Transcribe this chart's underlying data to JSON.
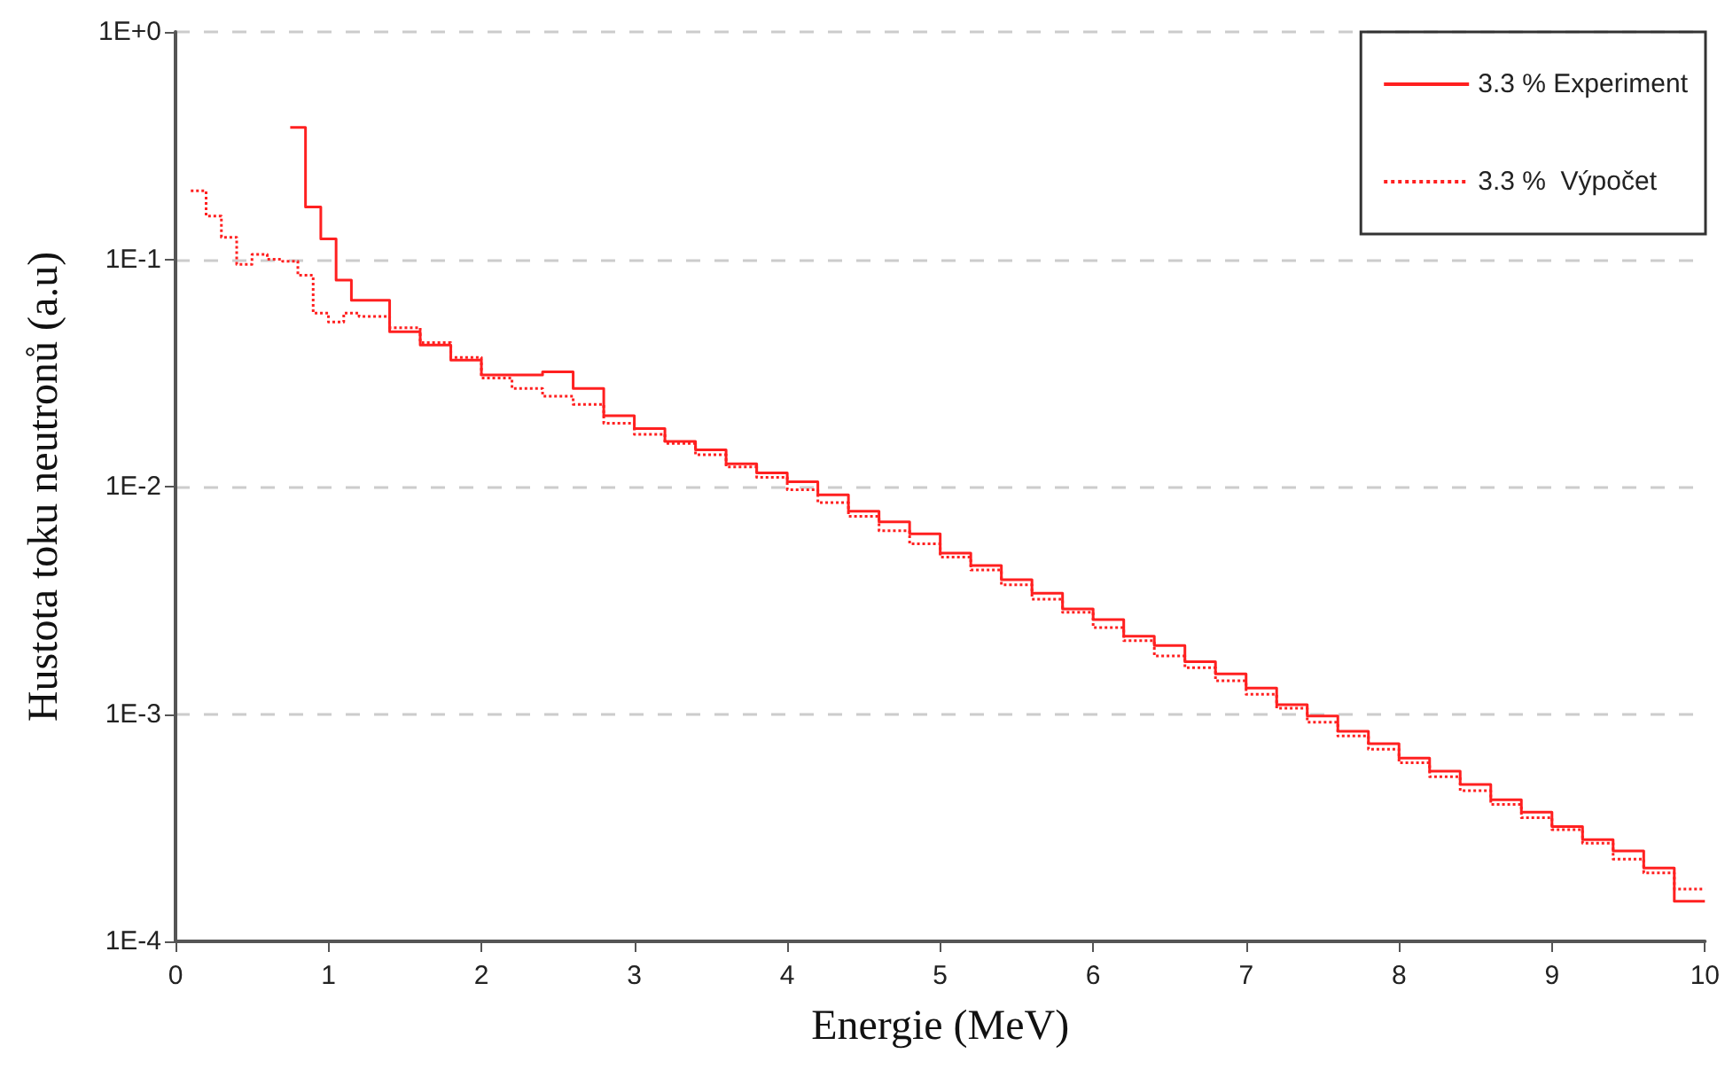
{
  "chart_data": {
    "type": "step",
    "xlabel": "Energie (MeV)",
    "ylabel": "Hustota toku neutronů (a.u)",
    "xlim": [
      0,
      10
    ],
    "xticks": [
      0,
      1,
      2,
      3,
      4,
      5,
      6,
      7,
      8,
      9,
      10
    ],
    "ylim": [
      0.0001,
      1
    ],
    "yticks": [
      {
        "value": 0.0001,
        "label": "1E-4"
      },
      {
        "value": 0.001,
        "label": "1E-3"
      },
      {
        "value": 0.01,
        "label": "1E-2"
      },
      {
        "value": 0.1,
        "label": "1E-1"
      },
      {
        "value": 1,
        "label": "1E+0"
      }
    ],
    "log": "y",
    "grid": "y",
    "legend": "top right",
    "marker": "none",
    "series": [
      {
        "name": "3.3 % Experiment",
        "color": "#ff2020",
        "line_style": "solid",
        "x": [
          0.75,
          0.85,
          0.95,
          1.05,
          1.15,
          1.4,
          1.6,
          1.8,
          2.0,
          2.2,
          2.4,
          2.6,
          2.8,
          3.0,
          3.2,
          3.4,
          3.6,
          3.8,
          4.0,
          4.2,
          4.4,
          4.6,
          4.8,
          5.0,
          5.2,
          5.4,
          5.6,
          5.8,
          6.0,
          6.2,
          6.4,
          6.6,
          6.8,
          7.0,
          7.2,
          7.4,
          7.6,
          7.8,
          8.0,
          8.2,
          8.4,
          8.6,
          8.8,
          9.0,
          9.2,
          9.4,
          9.6,
          9.8,
          10
        ],
        "values": [
          0.38,
          0.17,
          0.123,
          0.081,
          0.066,
          0.048,
          0.042,
          0.036,
          0.031,
          0.031,
          0.032,
          0.027,
          0.0205,
          0.018,
          0.0158,
          0.0145,
          0.0126,
          0.0115,
          0.0105,
          0.0092,
          0.0078,
          0.007,
          0.0062,
          0.0051,
          0.0045,
          0.0039,
          0.0034,
          0.0029,
          0.0026,
          0.0022,
          0.002,
          0.0017,
          0.0015,
          0.0013,
          0.0011,
          0.00098,
          0.00084,
          0.00074,
          0.00064,
          0.00056,
          0.00049,
          0.00042,
          0.00037,
          0.00032,
          0.00028,
          0.00025,
          0.00021,
          0.00015,
          0.00015
        ]
      },
      {
        "name": "3.3 %  Výpočet",
        "color": "#ff2020",
        "line_style": "dotted",
        "x": [
          0.1,
          0.2,
          0.3,
          0.4,
          0.5,
          0.6,
          0.7,
          0.8,
          0.9,
          1.0,
          1.1,
          1.2,
          1.4,
          1.6,
          1.8,
          2.0,
          2.2,
          2.4,
          2.6,
          2.8,
          3.0,
          3.2,
          3.4,
          3.6,
          3.8,
          4.0,
          4.2,
          4.4,
          4.6,
          4.8,
          5.0,
          5.2,
          5.4,
          5.6,
          5.8,
          6.0,
          6.2,
          6.4,
          6.6,
          6.8,
          7.0,
          7.2,
          7.4,
          7.6,
          7.8,
          8.0,
          8.2,
          8.4,
          8.6,
          8.8,
          9.0,
          9.2,
          9.4,
          9.6,
          9.8,
          10
        ],
        "values": [
          0.2,
          0.155,
          0.125,
          0.095,
          0.105,
          0.1,
          0.098,
          0.085,
          0.058,
          0.053,
          0.058,
          0.056,
          0.05,
          0.043,
          0.037,
          0.03,
          0.027,
          0.025,
          0.023,
          0.019,
          0.017,
          0.0155,
          0.0138,
          0.0122,
          0.011,
          0.0097,
          0.0085,
          0.0074,
          0.0064,
          0.0056,
          0.0049,
          0.0043,
          0.0037,
          0.0032,
          0.0028,
          0.0024,
          0.0021,
          0.0018,
          0.0016,
          0.0014,
          0.00122,
          0.00106,
          0.00092,
          0.0008,
          0.0007,
          0.00061,
          0.00053,
          0.00046,
          0.0004,
          0.00035,
          0.00031,
          0.00027,
          0.00023,
          0.0002,
          0.00017,
          0.00017
        ]
      }
    ]
  }
}
